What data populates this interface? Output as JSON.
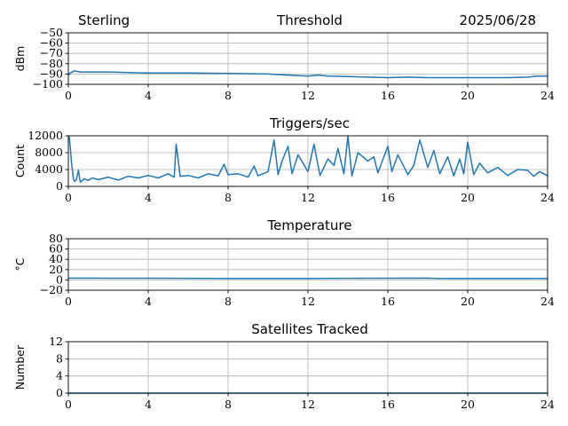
{
  "header": {
    "station": "Sterling",
    "date": "2025/06/28"
  },
  "colors": {
    "series": "#1f77b4",
    "grid": "#b0b0b0",
    "axis": "#000000"
  },
  "chart_data": [
    {
      "type": "line",
      "title": "Threshold",
      "ylabel": "dBm",
      "xlim": [
        0,
        24
      ],
      "ylim": [
        -100,
        -50
      ],
      "xticks": [
        "0",
        "4",
        "8",
        "12",
        "16",
        "20",
        "24"
      ],
      "yticks": [
        "−50",
        "−60",
        "−70",
        "−80",
        "−90",
        "−100"
      ],
      "ytick_values": [
        -50,
        -60,
        -70,
        -80,
        -90,
        -100
      ],
      "grid": true,
      "series": [
        {
          "x": [
            0,
            0.1,
            0.3,
            0.6,
            1,
            2,
            3,
            4,
            6,
            8,
            10,
            11,
            12,
            12.5,
            13,
            14,
            15,
            16,
            17,
            18,
            19,
            20,
            21,
            22,
            23,
            23.5,
            24
          ],
          "y": [
            -91,
            -89,
            -87,
            -88,
            -88,
            -88,
            -88.5,
            -89,
            -89,
            -89.5,
            -90,
            -91,
            -92,
            -91,
            -92,
            -92.5,
            -93,
            -93.5,
            -93,
            -93.5,
            -93.5,
            -93.5,
            -93.5,
            -93.5,
            -93,
            -92,
            -92
          ]
        }
      ]
    },
    {
      "type": "line",
      "title": "Triggers/sec",
      "ylabel": "Count",
      "xlim": [
        0,
        24
      ],
      "ylim": [
        0,
        12000
      ],
      "xticks": [
        "0",
        "4",
        "8",
        "12",
        "16",
        "20",
        "24"
      ],
      "yticks": [
        "0",
        "4000",
        "8000",
        "12000"
      ],
      "ytick_values": [
        0,
        4000,
        8000,
        12000
      ],
      "grid": true,
      "series": [
        {
          "x": [
            0,
            0.05,
            0.1,
            0.15,
            0.2,
            0.25,
            0.3,
            0.4,
            0.5,
            0.6,
            0.8,
            1,
            1.2,
            1.5,
            2,
            2.5,
            3,
            3.5,
            4,
            4.5,
            5,
            5.3,
            5.4,
            5.6,
            6,
            6.5,
            7,
            7.5,
            7.8,
            8,
            8.5,
            9,
            9.3,
            9.5,
            10,
            10.3,
            10.5,
            10.7,
            11,
            11.2,
            11.5,
            12,
            12.3,
            12.6,
            13,
            13.3,
            13.5,
            13.8,
            14,
            14.2,
            14.5,
            15,
            15.3,
            15.5,
            16,
            16.2,
            16.5,
            17,
            17.3,
            17.6,
            18,
            18.3,
            18.6,
            19,
            19.3,
            19.6,
            19.8,
            20,
            20.3,
            20.6,
            21,
            21.5,
            22,
            22.5,
            23,
            23.3,
            23.6,
            24
          ],
          "y": [
            12000,
            11500,
            9000,
            6000,
            4000,
            2000,
            1200,
            1500,
            3800,
            1000,
            1800,
            1400,
            2000,
            1600,
            2200,
            1500,
            2400,
            2000,
            2600,
            2000,
            3000,
            2200,
            10000,
            2400,
            2600,
            2000,
            3000,
            2500,
            5200,
            2800,
            3000,
            2200,
            4800,
            2500,
            3500,
            11000,
            2800,
            6000,
            9500,
            3000,
            7500,
            3500,
            10000,
            2600,
            6500,
            5000,
            9000,
            3000,
            12000,
            2500,
            8000,
            6000,
            7000,
            3200,
            9500,
            3500,
            7500,
            2800,
            5000,
            11000,
            4500,
            8500,
            3000,
            7000,
            2500,
            6500,
            3000,
            10500,
            2800,
            5500,
            3200,
            4500,
            2600,
            4000,
            3800,
            2400,
            3500,
            2500
          ]
        }
      ]
    },
    {
      "type": "line",
      "title": "Temperature",
      "ylabel": "°C",
      "xlim": [
        0,
        24
      ],
      "ylim": [
        -20,
        80
      ],
      "xticks": [
        "0",
        "4",
        "8",
        "12",
        "16",
        "20",
        "24"
      ],
      "yticks": [
        "−20",
        "0",
        "20",
        "40",
        "60",
        "80"
      ],
      "ytick_values": [
        -20,
        0,
        20,
        40,
        60,
        80
      ],
      "grid": true,
      "series": [
        {
          "x": [
            0,
            1,
            2,
            4,
            8,
            12,
            16,
            18,
            18.5,
            20,
            24
          ],
          "y": [
            3.5,
            3.5,
            3.2,
            3.2,
            3.0,
            3.0,
            3.2,
            3.4,
            2.8,
            2.8,
            2.8
          ]
        }
      ]
    },
    {
      "type": "line",
      "title": "Satellites Tracked",
      "ylabel": "Number",
      "xlim": [
        0,
        24
      ],
      "ylim": [
        0,
        12
      ],
      "xticks": [
        "0",
        "4",
        "8",
        "12",
        "16",
        "20",
        "24"
      ],
      "yticks": [
        "0",
        "4",
        "8",
        "12"
      ],
      "ytick_values": [
        0,
        4,
        8,
        12
      ],
      "grid": true,
      "series": [
        {
          "x": [
            0,
            24
          ],
          "y": [
            0,
            0
          ]
        }
      ]
    }
  ]
}
